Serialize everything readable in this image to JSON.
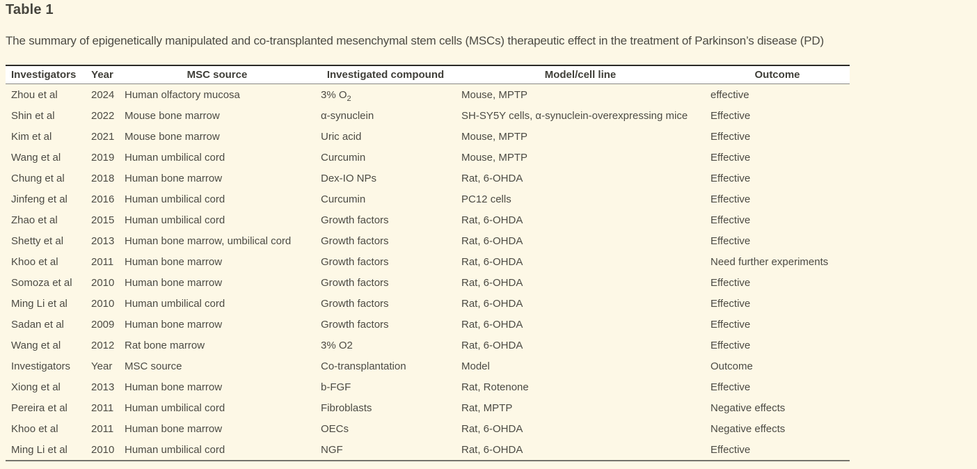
{
  "page": {
    "title": "Table 1",
    "caption": "The summary of epigenetically manipulated and co-transplanted mesenchymal stem cells (MSCs) therapeutic effect in the treatment of Parkinson’s disease (PD)"
  },
  "colors": {
    "page_background": "#fdf8e6",
    "header_background": "#ffffff",
    "body_text": "#4c4b44",
    "header_top_border": "#2b2b28",
    "header_bottom_border": "#8a8983",
    "table_bottom_border": "#75746c"
  },
  "table": {
    "columns": [
      "Investigators",
      "Year",
      "MSC source",
      "Investigated compound",
      "Model/cell line",
      "Outcome"
    ],
    "rows": [
      {
        "investigators": "Zhou et al",
        "year": "2024",
        "msc_source": "Human olfactory mucosa",
        "compound": "3% O",
        "compound_sub": "2",
        "model": "Mouse, MPTP",
        "outcome": "effective"
      },
      {
        "investigators": "Shin et al",
        "year": "2022",
        "msc_source": "Mouse bone marrow",
        "compound": "α-synuclein",
        "model": "SH-SY5Y cells, α-synuclein-overexpressing mice",
        "outcome": "Effective"
      },
      {
        "investigators": "Kim et al",
        "year": "2021",
        "msc_source": "Mouse bone marrow",
        "compound": "Uric acid",
        "model": "Mouse, MPTP",
        "outcome": "Effective"
      },
      {
        "investigators": "Wang et al",
        "year": "2019",
        "msc_source": "Human umbilical cord",
        "compound": "Curcumin",
        "model": "Mouse, MPTP",
        "outcome": "Effective"
      },
      {
        "investigators": "Chung et al",
        "year": "2018",
        "msc_source": "Human bone marrow",
        "compound": "Dex-IO NPs",
        "model": "Rat, 6-OHDA",
        "outcome": "Effective"
      },
      {
        "investigators": "Jinfeng et al",
        "year": "2016",
        "msc_source": "Human umbilical cord",
        "compound": "Curcumin",
        "model": "PC12 cells",
        "outcome": "Effective"
      },
      {
        "investigators": "Zhao et al",
        "year": "2015",
        "msc_source": "Human umbilical cord",
        "compound": "Growth factors",
        "model": "Rat, 6-OHDA",
        "outcome": "Effective"
      },
      {
        "investigators": "Shetty et al",
        "year": "2013",
        "msc_source": "Human bone marrow, umbilical cord",
        "compound": "Growth factors",
        "model": "Rat, 6-OHDA",
        "outcome": "Effective"
      },
      {
        "investigators": "Khoo et al",
        "year": "2011",
        "msc_source": "Human bone marrow",
        "compound": "Growth factors",
        "model": "Rat, 6-OHDA",
        "outcome": "Need further experiments"
      },
      {
        "investigators": "Somoza et al",
        "year": "2010",
        "msc_source": "Human bone marrow",
        "compound": "Growth factors",
        "model": "Rat, 6-OHDA",
        "outcome": "Effective"
      },
      {
        "investigators": "Ming Li et al",
        "year": "2010",
        "msc_source": "Human umbilical cord",
        "compound": "Growth factors",
        "model": "Rat, 6-OHDA",
        "outcome": "Effective"
      },
      {
        "investigators": "Sadan et al",
        "year": "2009",
        "msc_source": "Human bone marrow",
        "compound": "Growth factors",
        "model": "Rat, 6-OHDA",
        "outcome": "Effective"
      },
      {
        "investigators": "Wang et al",
        "year": "2012",
        "msc_source": "Rat bone marrow",
        "compound": "3% O2",
        "model": "Rat, 6-OHDA",
        "outcome": "Effective"
      },
      {
        "investigators": "Investigators",
        "year": "Year",
        "msc_source": "MSC source",
        "compound": "Co-transplantation",
        "model": "Model",
        "outcome": "Outcome"
      },
      {
        "investigators": "Xiong et al",
        "year": "2013",
        "msc_source": "Human bone marrow",
        "compound": "b-FGF",
        "model": "Rat, Rotenone",
        "outcome": "Effective"
      },
      {
        "investigators": "Pereira et al",
        "year": "2011",
        "msc_source": "Human umbilical cord",
        "compound": "Fibroblasts",
        "model": "Rat, MPTP",
        "outcome": "Negative effects"
      },
      {
        "investigators": "Khoo et al",
        "year": "2011",
        "msc_source": "Human bone marrow",
        "compound": "OECs",
        "model": "Rat, 6-OHDA",
        "outcome": "Negative effects"
      },
      {
        "investigators": "Ming Li et al",
        "year": "2010",
        "msc_source": "Human umbilical cord",
        "compound": "NGF",
        "model": "Rat, 6-OHDA",
        "outcome": "Effective"
      }
    ]
  }
}
